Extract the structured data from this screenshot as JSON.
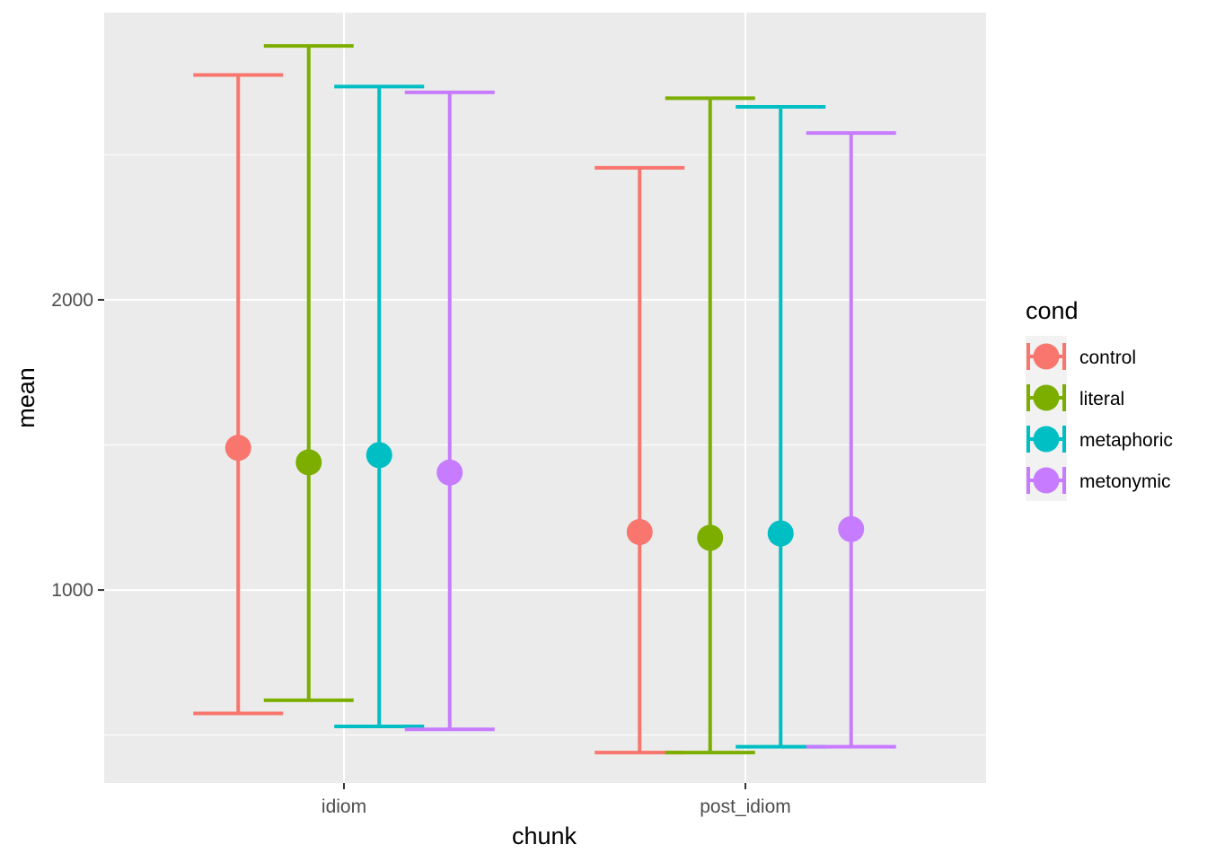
{
  "chart_data": {
    "type": "errorbar-point",
    "xlabel": "chunk",
    "ylabel": "mean",
    "categories": [
      "idiom",
      "post_idiom"
    ],
    "y_ticks": [
      1000,
      2000
    ],
    "ylim": [
      335,
      2990
    ],
    "grid": true,
    "legend": {
      "title": "cond",
      "position": "right",
      "entries": [
        "control",
        "literal",
        "metaphoric",
        "metonymic"
      ]
    },
    "series": [
      {
        "name": "control",
        "color": "#F8766D",
        "points": [
          {
            "category": "idiom",
            "mean": 1490,
            "lower": 575,
            "upper": 2775
          },
          {
            "category": "post_idiom",
            "mean": 1200,
            "lower": 440,
            "upper": 2455
          }
        ]
      },
      {
        "name": "literal",
        "color": "#7CAE00",
        "points": [
          {
            "category": "idiom",
            "mean": 1440,
            "lower": 620,
            "upper": 2875
          },
          {
            "category": "post_idiom",
            "mean": 1180,
            "lower": 440,
            "upper": 2695
          }
        ]
      },
      {
        "name": "metaphoric",
        "color": "#00BFC4",
        "points": [
          {
            "category": "idiom",
            "mean": 1465,
            "lower": 530,
            "upper": 2735
          },
          {
            "category": "post_idiom",
            "mean": 1195,
            "lower": 460,
            "upper": 2665
          }
        ]
      },
      {
        "name": "metonymic",
        "color": "#C77CFF",
        "points": [
          {
            "category": "idiom",
            "mean": 1405,
            "lower": 520,
            "upper": 2715
          },
          {
            "category": "post_idiom",
            "mean": 1210,
            "lower": 460,
            "upper": 2575
          }
        ]
      }
    ]
  }
}
